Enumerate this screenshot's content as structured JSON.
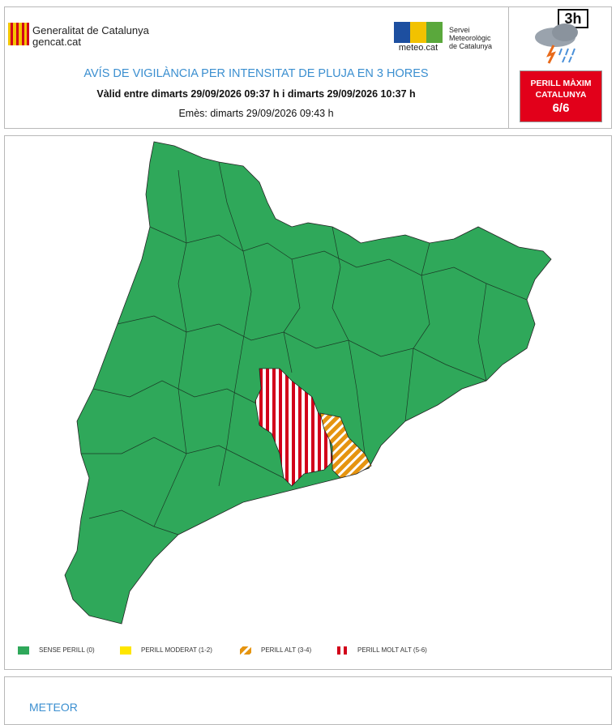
{
  "header": {
    "org_name": "Generalitat de Catalunya",
    "org_site": "gencat.cat",
    "meteo_logo_text": "meteo.cat",
    "service": [
      "Servei",
      "Meteorològic",
      "de Catalunya"
    ],
    "icon_label": "3h",
    "title": "AVÍS DE VIGILÀNCIA PER INTENSITAT DE PLUJA EN 3 HORES",
    "validity": "Vàlid entre dimarts 29/09/2026 09:37 h i dimarts 29/09/2026 10:37 h",
    "issued": "Emès: dimarts 29/09/2026 09:43 h",
    "danger": [
      "PERILL MÀXIM",
      "CATALUNYA",
      "6/6"
    ]
  },
  "legend": [
    "SENSE PERILL (0)",
    "PERILL MODERAT (1-2)",
    "PERILL ALT (3-4)",
    "PERILL MOLT ALT (5-6)"
  ],
  "section": {
    "title": "METEOR"
  }
}
